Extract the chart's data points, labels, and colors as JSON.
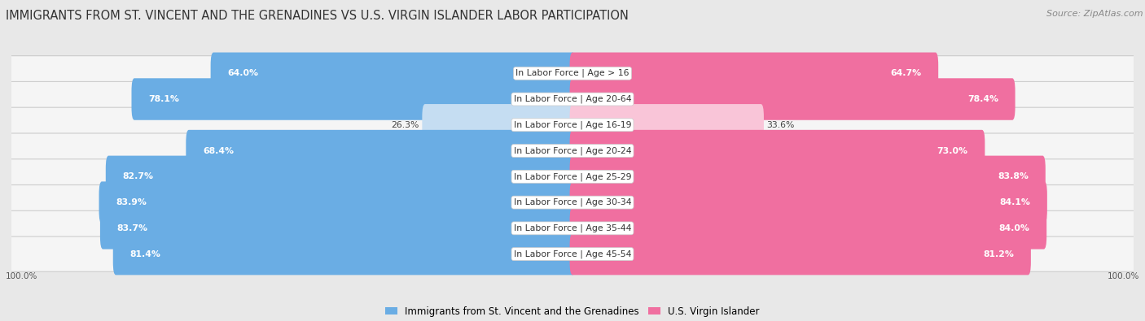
{
  "title": "IMMIGRANTS FROM ST. VINCENT AND THE GRENADINES VS U.S. VIRGIN ISLANDER LABOR PARTICIPATION",
  "source": "Source: ZipAtlas.com",
  "categories": [
    "In Labor Force | Age > 16",
    "In Labor Force | Age 20-64",
    "In Labor Force | Age 16-19",
    "In Labor Force | Age 20-24",
    "In Labor Force | Age 25-29",
    "In Labor Force | Age 30-34",
    "In Labor Force | Age 35-44",
    "In Labor Force | Age 45-54"
  ],
  "left_values": [
    64.0,
    78.1,
    26.3,
    68.4,
    82.7,
    83.9,
    83.7,
    81.4
  ],
  "right_values": [
    64.7,
    78.4,
    33.6,
    73.0,
    83.8,
    84.1,
    84.0,
    81.2
  ],
  "left_color": "#6aade4",
  "right_color": "#f06fa0",
  "left_color_light": "#c5ddf2",
  "right_color_light": "#f9c5d8",
  "left_label": "Immigrants from St. Vincent and the Grenadines",
  "right_label": "U.S. Virgin Islander",
  "bg_color": "#e8e8e8",
  "row_bg_color": "#f5f5f5",
  "max_val": 100.0,
  "title_fontsize": 10.5,
  "cat_fontsize": 7.8,
  "value_fontsize": 7.8,
  "legend_fontsize": 8.5,
  "source_fontsize": 8
}
